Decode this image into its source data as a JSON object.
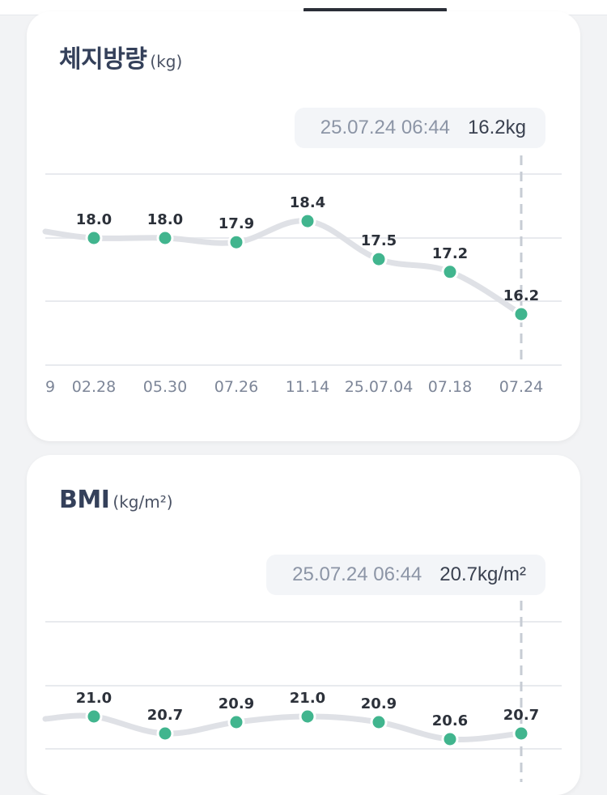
{
  "colors": {
    "line": "#dfe1e6",
    "point": "#41b58e",
    "grid": "#e8eaee",
    "guide": "#c7ccd4"
  },
  "cards": [
    {
      "title": "체지방량",
      "unit": "(kg)",
      "tooltip": {
        "time": "25.07.24 06:44",
        "value": "16.2kg"
      }
    },
    {
      "title": "BMI",
      "unit": "(kg/m²)",
      "tooltip": {
        "time": "25.07.24 06:44",
        "value": "20.7kg/m²"
      }
    }
  ],
  "chart_data": [
    {
      "type": "line",
      "title": "체지방량 (kg)",
      "x": [
        "9",
        "02.28",
        "05.30",
        "07.26",
        "11.14",
        "25.07.04",
        "07.18",
        "07.24"
      ],
      "series": [
        {
          "values": [
            null,
            18.0,
            18.0,
            17.9,
            18.4,
            17.5,
            17.2,
            16.2
          ]
        }
      ],
      "value_labels": [
        "18.0",
        "18.0",
        "17.9",
        "18.4",
        "17.5",
        "17.2",
        "16.2"
      ],
      "selected_index": 7
    },
    {
      "type": "line",
      "title": "BMI (kg/m²)",
      "x": [
        "",
        "",
        "",
        "",
        "",
        "",
        "",
        ""
      ],
      "series": [
        {
          "values": [
            null,
            21.0,
            20.7,
            20.9,
            21.0,
            20.9,
            20.6,
            20.7
          ]
        }
      ],
      "value_labels": [
        "21.0",
        "20.7",
        "20.9",
        "21.0",
        "20.9",
        "20.6",
        "20.7"
      ],
      "selected_index": 7
    }
  ]
}
